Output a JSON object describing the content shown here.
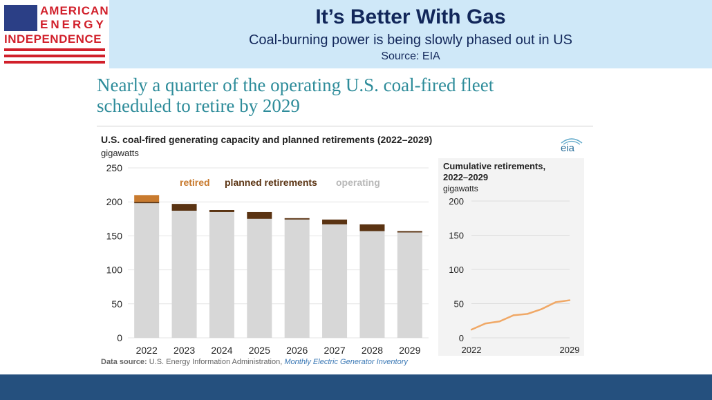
{
  "logo": {
    "line1": "AMERICAN",
    "line2": "ENERGY",
    "line3": "INDEPENDENCE"
  },
  "header": {
    "title": "It’s Better With Gas",
    "subtitle": "Coal-burning power is being slowly phased out in US",
    "source": "Source: EIA"
  },
  "headline": {
    "line1": "Nearly a quarter of the operating U.S. coal-fired fleet",
    "line2": "scheduled to retire by 2029"
  },
  "eia_logo_text": "eia",
  "footer": {
    "source_label": "Data source:",
    "source_org": "U.S. Energy Information Administration,",
    "source_doc": "Monthly Electric Generator Inventory"
  },
  "colors": {
    "retired": "#c87a2e",
    "planned": "#5a3312",
    "operating": "#d7d7d7",
    "line": "#f0a866",
    "logo_red": "#d11f2a",
    "header_band": "#cfe8f8",
    "footer_band": "#25507e"
  },
  "chart_data": [
    {
      "type": "bar",
      "stacked": true,
      "title": "U.S. coal-fired generating capacity and planned retirements (2022–2029)",
      "ylabel": "gigawatts",
      "ylim": [
        0,
        250
      ],
      "yticks": [
        0,
        50,
        100,
        150,
        200,
        250
      ],
      "grid": true,
      "legend": "top-inline",
      "categories": [
        "2022",
        "2023",
        "2024",
        "2025",
        "2026",
        "2027",
        "2028",
        "2029"
      ],
      "series": [
        {
          "name": "operating",
          "values": [
            198,
            187,
            185,
            175,
            174,
            167,
            157,
            155
          ]
        },
        {
          "name": "planned retirements",
          "values": [
            2,
            10,
            3,
            10,
            2,
            7,
            10,
            2
          ]
        },
        {
          "name": "retired",
          "values": [
            10,
            0,
            0,
            0,
            0,
            0,
            0,
            0
          ]
        }
      ]
    },
    {
      "type": "line",
      "title": "Cumulative retirements, 2022–2029",
      "ylabel": "gigawatts",
      "ylim": [
        0,
        200
      ],
      "yticks": [
        0,
        50,
        100,
        150,
        200
      ],
      "xticks": [
        "2022",
        "2029"
      ],
      "grid": true,
      "x": [
        2022,
        2023,
        2024,
        2025,
        2026,
        2027,
        2028,
        2029
      ],
      "y": [
        12,
        21,
        24,
        33,
        35,
        42,
        52,
        55
      ]
    }
  ]
}
